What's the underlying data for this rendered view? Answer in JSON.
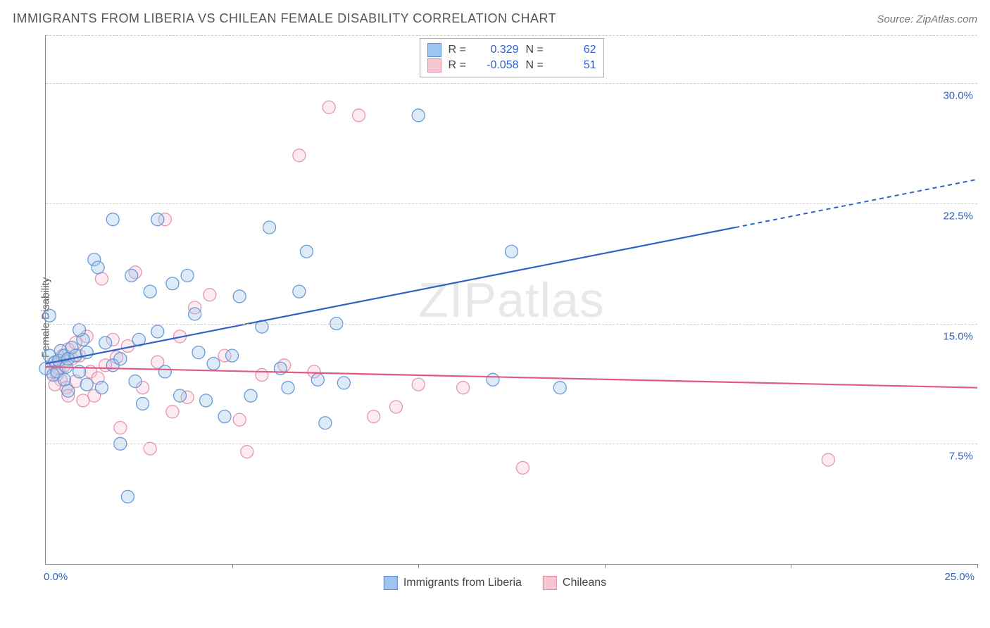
{
  "title": "IMMIGRANTS FROM LIBERIA VS CHILEAN FEMALE DISABILITY CORRELATION CHART",
  "source_prefix": "Source: ",
  "source_name": "ZipAtlas.com",
  "watermark": {
    "strong": "ZIP",
    "light": "atlas"
  },
  "chart": {
    "type": "scatter",
    "ylabel": "Female Disability",
    "xlim": [
      0,
      25
    ],
    "ylim": [
      0,
      33
    ],
    "x_origin_label": "0.0%",
    "x_end_label": "25.0%",
    "y_ticks": [
      {
        "v": 7.5,
        "label": "7.5%"
      },
      {
        "v": 15.0,
        "label": "15.0%"
      },
      {
        "v": 22.5,
        "label": "22.5%"
      },
      {
        "v": 30.0,
        "label": "30.0%"
      }
    ],
    "x_tick_step": 5,
    "marker_radius": 9,
    "marker_fill_opacity": 0.35,
    "marker_stroke_opacity": 0.9,
    "grid_color": "#cccccc",
    "background_color": "#ffffff",
    "colors": {
      "series_a": {
        "fill": "#9ec5ef",
        "stroke": "#5b91d1",
        "line": "#2f62c4",
        "value_text": "#2f62c4"
      },
      "series_b": {
        "fill": "#f6c6d3",
        "stroke": "#e48ba6",
        "line": "#e15a85",
        "value_text": "#2f62c4"
      }
    },
    "series": [
      {
        "key": "series_a",
        "name": "Immigrants from Liberia",
        "r": "0.329",
        "n": "62",
        "trend": {
          "x1": 0,
          "y1": 12.5,
          "x2": 18.5,
          "y2": 21.0,
          "dashed_to_x": 25,
          "dashed_to_y": 24.0
        },
        "points": [
          [
            0.0,
            12.2
          ],
          [
            0.1,
            13.0
          ],
          [
            0.2,
            11.8
          ],
          [
            0.25,
            12.6
          ],
          [
            0.3,
            12.0
          ],
          [
            0.35,
            12.7
          ],
          [
            0.4,
            13.3
          ],
          [
            0.5,
            11.5
          ],
          [
            0.5,
            13.0
          ],
          [
            0.55,
            12.3
          ],
          [
            0.6,
            12.8
          ],
          [
            0.7,
            13.5
          ],
          [
            0.8,
            13.0
          ],
          [
            0.9,
            12.0
          ],
          [
            1.0,
            14.0
          ],
          [
            1.1,
            13.2
          ],
          [
            0.1,
            15.5
          ],
          [
            1.3,
            19.0
          ],
          [
            1.4,
            18.5
          ],
          [
            1.8,
            21.5
          ],
          [
            2.0,
            7.5
          ],
          [
            2.2,
            4.2
          ],
          [
            2.3,
            18.0
          ],
          [
            2.5,
            14.0
          ],
          [
            2.6,
            10.0
          ],
          [
            2.8,
            17.0
          ],
          [
            3.0,
            14.5
          ],
          [
            3.0,
            21.5
          ],
          [
            3.4,
            17.5
          ],
          [
            3.6,
            10.5
          ],
          [
            3.8,
            18.0
          ],
          [
            4.1,
            13.2
          ],
          [
            4.3,
            10.2
          ],
          [
            4.5,
            12.5
          ],
          [
            4.8,
            9.2
          ],
          [
            5.2,
            16.7
          ],
          [
            5.5,
            10.5
          ],
          [
            5.8,
            14.8
          ],
          [
            6.0,
            21.0
          ],
          [
            6.3,
            12.2
          ],
          [
            6.5,
            11.0
          ],
          [
            7.0,
            19.5
          ],
          [
            7.3,
            11.5
          ],
          [
            7.5,
            8.8
          ],
          [
            7.8,
            15.0
          ],
          [
            8.0,
            11.3
          ],
          [
            10.0,
            28.0
          ],
          [
            12.0,
            11.5
          ],
          [
            12.5,
            19.5
          ],
          [
            13.8,
            11.0
          ],
          [
            1.5,
            11.0
          ],
          [
            1.8,
            12.4
          ],
          [
            2.0,
            12.8
          ],
          [
            2.4,
            11.4
          ],
          [
            0.6,
            10.8
          ],
          [
            0.9,
            14.6
          ],
          [
            1.1,
            11.2
          ],
          [
            1.6,
            13.8
          ],
          [
            3.2,
            12.0
          ],
          [
            4.0,
            15.6
          ],
          [
            5.0,
            13.0
          ],
          [
            6.8,
            17.0
          ]
        ]
      },
      {
        "key": "series_b",
        "name": "Chileans",
        "r": "-0.058",
        "n": "51",
        "trend": {
          "x1": 0,
          "y1": 12.3,
          "x2": 25,
          "y2": 11.0
        },
        "points": [
          [
            0.2,
            12.5
          ],
          [
            0.3,
            11.8
          ],
          [
            0.35,
            12.2
          ],
          [
            0.4,
            11.5
          ],
          [
            0.45,
            13.0
          ],
          [
            0.5,
            12.4
          ],
          [
            0.55,
            11.0
          ],
          [
            0.6,
            13.4
          ],
          [
            0.7,
            12.8
          ],
          [
            0.8,
            11.4
          ],
          [
            0.9,
            13.0
          ],
          [
            1.0,
            10.2
          ],
          [
            1.1,
            14.2
          ],
          [
            1.2,
            12.0
          ],
          [
            1.3,
            10.5
          ],
          [
            1.5,
            17.8
          ],
          [
            1.6,
            12.4
          ],
          [
            1.8,
            14.0
          ],
          [
            2.0,
            8.5
          ],
          [
            2.2,
            13.6
          ],
          [
            2.4,
            18.2
          ],
          [
            2.6,
            11.0
          ],
          [
            2.8,
            7.2
          ],
          [
            3.0,
            12.6
          ],
          [
            3.2,
            21.5
          ],
          [
            3.4,
            9.5
          ],
          [
            3.6,
            14.2
          ],
          [
            3.8,
            10.4
          ],
          [
            4.0,
            16.0
          ],
          [
            4.4,
            16.8
          ],
          [
            4.8,
            13.0
          ],
          [
            5.2,
            9.0
          ],
          [
            5.4,
            7.0
          ],
          [
            5.8,
            11.8
          ],
          [
            6.4,
            12.4
          ],
          [
            6.8,
            25.5
          ],
          [
            7.2,
            12.0
          ],
          [
            7.6,
            28.5
          ],
          [
            8.4,
            28.0
          ],
          [
            8.8,
            9.2
          ],
          [
            9.4,
            9.8
          ],
          [
            10.0,
            11.2
          ],
          [
            11.2,
            11.0
          ],
          [
            12.8,
            6.0
          ],
          [
            21.0,
            6.5
          ],
          [
            0.15,
            12.0
          ],
          [
            0.25,
            11.2
          ],
          [
            0.6,
            10.5
          ],
          [
            0.8,
            13.8
          ],
          [
            1.4,
            11.6
          ],
          [
            1.9,
            12.9
          ]
        ]
      }
    ],
    "legend_labels": {
      "R": "R =",
      "N": "N ="
    }
  }
}
